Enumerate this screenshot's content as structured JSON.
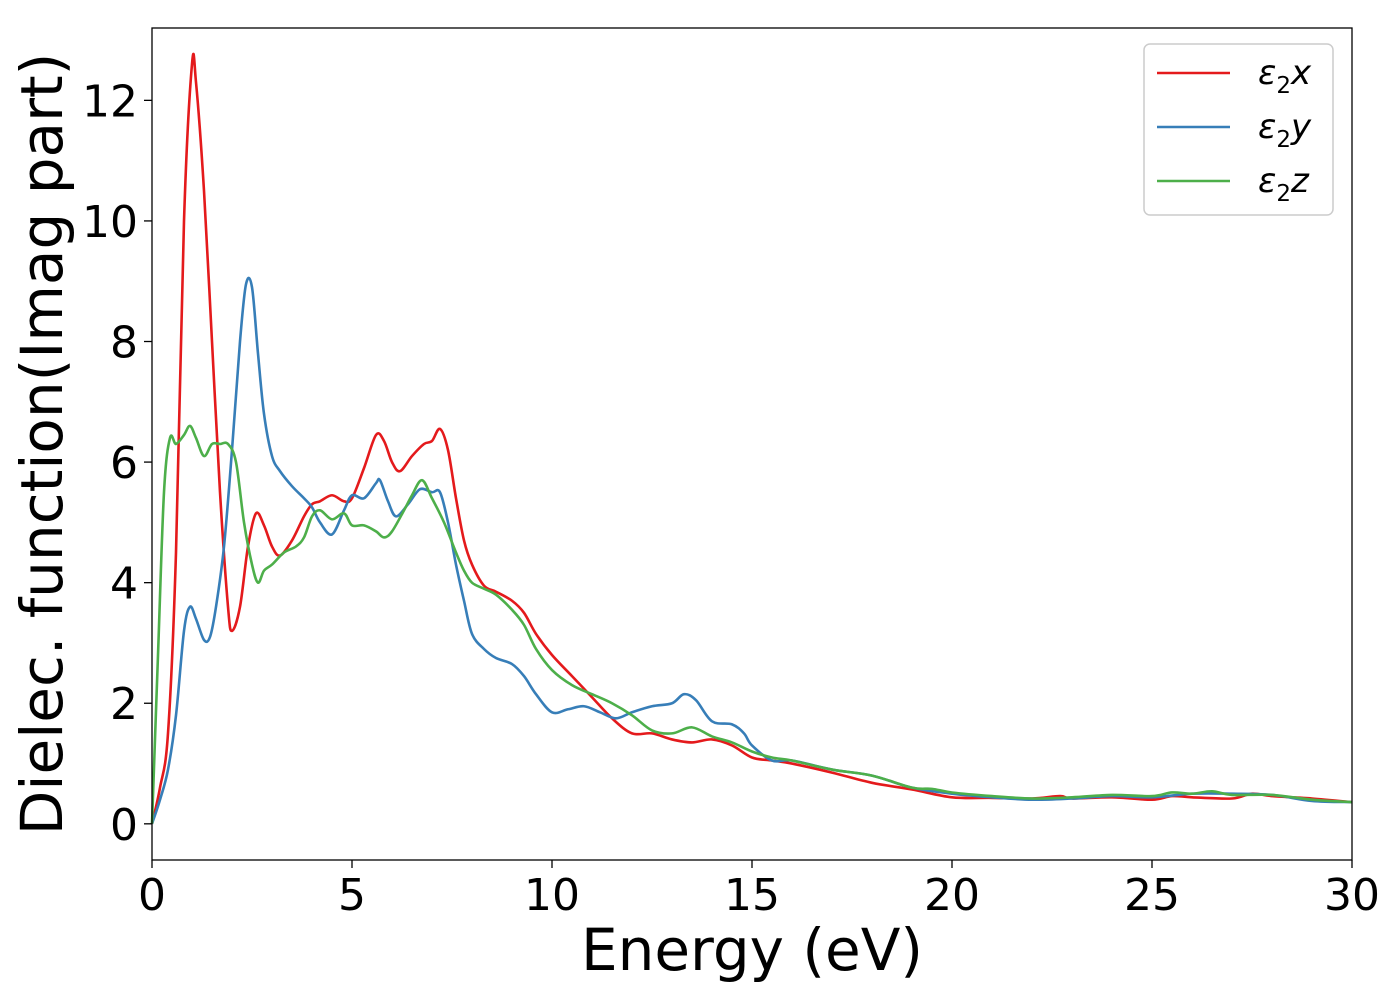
{
  "chart_data": {
    "type": "line",
    "title": "",
    "xlabel": "Energy (eV)",
    "ylabel": "Dielec. function(Imag part)",
    "xlim": [
      0,
      30
    ],
    "ylim": [
      -0.6,
      13.2
    ],
    "xticks": [
      0,
      5,
      10,
      15,
      20,
      25,
      30
    ],
    "xtick_labels": [
      "0",
      "5",
      "10",
      "15",
      "20",
      "25",
      "30"
    ],
    "yticks": [
      0,
      2,
      4,
      6,
      8,
      10,
      12
    ],
    "ytick_labels": [
      "0",
      "2",
      "4",
      "6",
      "8",
      "10",
      "12"
    ],
    "grid": false,
    "legend_position": "top-right",
    "series": [
      {
        "name": "ε₂x",
        "legend_base": "ε",
        "legend_sub": "2",
        "legend_suffix": "x",
        "color": "#e41a1c",
        "x": [
          0,
          0.2,
          0.4,
          0.6,
          0.8,
          1.0,
          1.1,
          1.3,
          1.5,
          1.7,
          1.9,
          2.0,
          2.2,
          2.4,
          2.6,
          2.8,
          3.0,
          3.2,
          3.5,
          3.8,
          4.0,
          4.2,
          4.5,
          4.8,
          5.0,
          5.3,
          5.6,
          5.8,
          6.0,
          6.2,
          6.5,
          6.8,
          7.0,
          7.2,
          7.4,
          7.6,
          7.8,
          8.0,
          8.3,
          8.6,
          9.0,
          9.3,
          9.6,
          10.0,
          10.5,
          11.0,
          11.5,
          12.0,
          12.5,
          13.0,
          13.5,
          14.0,
          14.5,
          15.0,
          15.5,
          16.0,
          17.0,
          18.0,
          19.0,
          20.0,
          21.0,
          22.0,
          22.7,
          23.0,
          24.0,
          25.0,
          25.5,
          26.0,
          27.0,
          27.5,
          28.0,
          29.0,
          30.0
        ],
        "y": [
          0.0,
          0.6,
          1.5,
          4.5,
          10.0,
          12.6,
          12.3,
          10.5,
          8.0,
          5.5,
          3.6,
          3.2,
          3.6,
          4.6,
          5.15,
          4.95,
          4.6,
          4.45,
          4.7,
          5.1,
          5.3,
          5.35,
          5.45,
          5.35,
          5.4,
          5.9,
          6.45,
          6.35,
          6.0,
          5.85,
          6.1,
          6.3,
          6.35,
          6.55,
          6.2,
          5.4,
          4.7,
          4.3,
          3.95,
          3.85,
          3.7,
          3.5,
          3.15,
          2.8,
          2.45,
          2.1,
          1.75,
          1.5,
          1.5,
          1.4,
          1.35,
          1.4,
          1.3,
          1.1,
          1.05,
          1.0,
          0.85,
          0.68,
          0.57,
          0.44,
          0.43,
          0.42,
          0.46,
          0.42,
          0.44,
          0.4,
          0.46,
          0.44,
          0.42,
          0.5,
          0.46,
          0.42,
          0.36
        ]
      },
      {
        "name": "ε₂y",
        "legend_base": "ε",
        "legend_sub": "2",
        "legend_suffix": "y",
        "color": "#377eb8",
        "x": [
          0,
          0.2,
          0.4,
          0.6,
          0.8,
          0.95,
          1.1,
          1.3,
          1.45,
          1.6,
          1.8,
          2.0,
          2.2,
          2.35,
          2.5,
          2.65,
          2.8,
          3.0,
          3.2,
          3.5,
          3.8,
          4.0,
          4.2,
          4.5,
          4.8,
          5.0,
          5.3,
          5.6,
          5.7,
          5.9,
          6.1,
          6.4,
          6.7,
          7.0,
          7.2,
          7.4,
          7.6,
          7.8,
          8.0,
          8.3,
          8.6,
          9.0,
          9.3,
          9.6,
          10.0,
          10.4,
          10.8,
          11.2,
          11.6,
          12.0,
          12.5,
          13.0,
          13.3,
          13.6,
          14.0,
          14.5,
          14.8,
          15.0,
          15.5,
          16.0,
          17.0,
          18.0,
          19.0,
          20.0,
          21.0,
          22.0,
          23.0,
          24.0,
          25.0,
          26.0,
          27.0,
          28.0,
          29.0,
          30.0
        ],
        "y": [
          0.0,
          0.4,
          0.9,
          1.8,
          3.2,
          3.6,
          3.4,
          3.05,
          3.1,
          3.6,
          4.6,
          6.2,
          8.0,
          8.95,
          8.9,
          7.8,
          6.8,
          6.1,
          5.85,
          5.6,
          5.4,
          5.25,
          5.0,
          4.8,
          5.2,
          5.45,
          5.4,
          5.65,
          5.7,
          5.35,
          5.1,
          5.3,
          5.55,
          5.5,
          5.5,
          5.0,
          4.3,
          3.7,
          3.15,
          2.9,
          2.75,
          2.65,
          2.45,
          2.15,
          1.85,
          1.9,
          1.95,
          1.85,
          1.75,
          1.85,
          1.95,
          2.0,
          2.15,
          2.05,
          1.7,
          1.65,
          1.5,
          1.3,
          1.05,
          1.05,
          0.9,
          0.8,
          0.6,
          0.5,
          0.44,
          0.4,
          0.42,
          0.46,
          0.44,
          0.5,
          0.5,
          0.48,
          0.38,
          0.36
        ]
      },
      {
        "name": "ε₂z",
        "legend_base": "ε",
        "legend_sub": "2",
        "legend_suffix": "z",
        "color": "#4daf4a",
        "x": [
          0,
          0.15,
          0.3,
          0.45,
          0.6,
          0.8,
          0.95,
          1.1,
          1.3,
          1.5,
          1.7,
          1.9,
          2.1,
          2.3,
          2.5,
          2.65,
          2.8,
          3.0,
          3.3,
          3.6,
          3.8,
          4.0,
          4.2,
          4.5,
          4.8,
          5.0,
          5.3,
          5.6,
          5.8,
          6.0,
          6.3,
          6.5,
          6.75,
          7.0,
          7.3,
          7.6,
          7.8,
          8.0,
          8.3,
          8.6,
          9.0,
          9.3,
          9.6,
          10.0,
          10.5,
          11.0,
          11.5,
          12.0,
          12.5,
          13.0,
          13.5,
          14.0,
          14.5,
          15.0,
          15.5,
          16.0,
          17.0,
          18.0,
          19.0,
          19.5,
          20.0,
          21.0,
          22.0,
          23.0,
          24.0,
          25.0,
          25.5,
          26.0,
          26.5,
          27.0,
          28.0,
          29.0,
          30.0
        ],
        "y": [
          0.0,
          2.8,
          5.5,
          6.4,
          6.3,
          6.45,
          6.6,
          6.4,
          6.1,
          6.3,
          6.3,
          6.3,
          6.0,
          5.0,
          4.3,
          4.0,
          4.2,
          4.3,
          4.5,
          4.6,
          4.75,
          5.1,
          5.2,
          5.05,
          5.15,
          4.95,
          4.95,
          4.85,
          4.75,
          4.85,
          5.2,
          5.45,
          5.7,
          5.4,
          5.0,
          4.5,
          4.2,
          4.0,
          3.9,
          3.8,
          3.55,
          3.3,
          2.9,
          2.55,
          2.3,
          2.15,
          2.0,
          1.8,
          1.55,
          1.5,
          1.6,
          1.45,
          1.35,
          1.2,
          1.1,
          1.05,
          0.9,
          0.8,
          0.6,
          0.58,
          0.52,
          0.46,
          0.42,
          0.44,
          0.48,
          0.46,
          0.52,
          0.5,
          0.54,
          0.48,
          0.48,
          0.4,
          0.36
        ]
      }
    ]
  }
}
